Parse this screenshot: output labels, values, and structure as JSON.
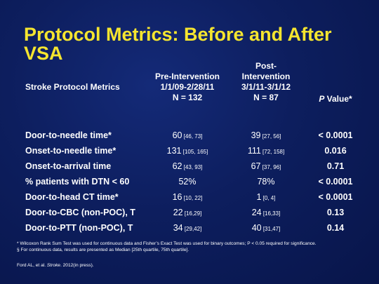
{
  "title": "Protocol Metrics:  Before and After VSA",
  "headers": {
    "metric": "Stroke Protocol Metrics",
    "pre": [
      "Pre-Intervention",
      "1/1/09-2/28/11",
      "N = 132"
    ],
    "post": [
      "Post-",
      "Intervention",
      "3/1/11-3/1/12",
      "N = 87"
    ],
    "p_value_italic": "P",
    "p_value_rest": " Value*"
  },
  "rows": [
    {
      "metric": "Door-to-needle time*",
      "pre": "60",
      "pre_ci": " [46, 73]",
      "post": "39",
      "post_ci": " [27, 56]",
      "p": "< 0.0001"
    },
    {
      "metric": "Onset-to-needle time*",
      "pre": "131",
      "pre_ci": " [105, 165]",
      "post": "111",
      "post_ci": " [72, 158]",
      "p": "0.016"
    },
    {
      "metric": "Onset-to-arrival time",
      "pre": "62",
      "pre_ci": " [43, 93]",
      "post": "67",
      "post_ci": " [37, 96]",
      "p": "0.71"
    },
    {
      "metric": "% patients with DTN < 60",
      "pre": "52%",
      "pre_ci": "",
      "post": "78%",
      "post_ci": "",
      "p": "< 0.0001"
    },
    {
      "metric": "Door-to-head CT time*",
      "pre": "16",
      "pre_ci": " [10, 22]",
      "post": "1",
      "post_ci": " [0, 4]",
      "p": "< 0.0001"
    },
    {
      "metric": "Door-to-CBC (non-POC), T",
      "pre": "22",
      "pre_ci": " [16,29]",
      "post": "24",
      "post_ci": " [16,33]",
      "p": "0.13"
    },
    {
      "metric": "Door-to-PTT (non-POC), T",
      "pre": "34",
      "pre_ci": " [29,42]",
      "post": "40",
      "post_ci": " [31,47]",
      "p": "0.14"
    }
  ],
  "footnotes": [
    "* Wilcoxon Rank Sum Test was used for continuous data and Fisher’s Exact Test was used for binary outcomes; P < 0.05 required for significance.",
    "§  For continuous data, results are presented as Median [25th quartile, 75th quartile]."
  ],
  "reference": {
    "authors": "Ford AL, et al. ",
    "journal": "Stroke",
    "rest": ". 2012(in press)."
  }
}
